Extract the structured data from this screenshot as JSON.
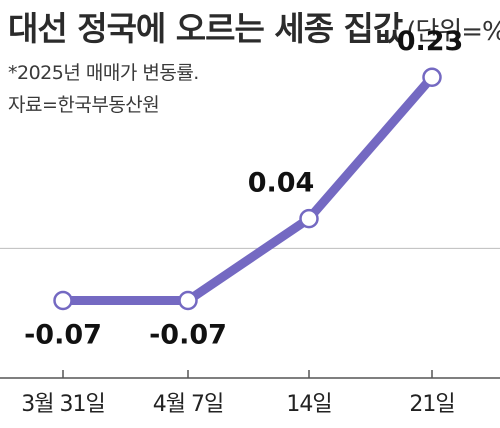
{
  "header": {
    "title": "대선 정국에 오르는 세종 집값",
    "unit": "(단위=%)"
  },
  "notes": {
    "line1": "*2025년 매매가 변동률.",
    "line2": "자료=한국부동산원"
  },
  "colors": {
    "line": "#7469c2",
    "marker_fill": "#ffffff",
    "grid": "#bdbdbd",
    "axis": "#555555",
    "text": "#111111"
  },
  "chart_data": {
    "type": "line",
    "categories": [
      "3월 31일",
      "4월 7일",
      "14일",
      "21일"
    ],
    "series": [
      {
        "values": [
          -0.07,
          -0.07,
          0.04,
          0.23
        ],
        "labels": [
          "-0.07",
          "-0.07",
          "0.04",
          "0.23"
        ]
      }
    ],
    "ylim": [
      -0.15,
      0.28
    ],
    "reference_line": 0,
    "grid": false,
    "legend": "none"
  }
}
